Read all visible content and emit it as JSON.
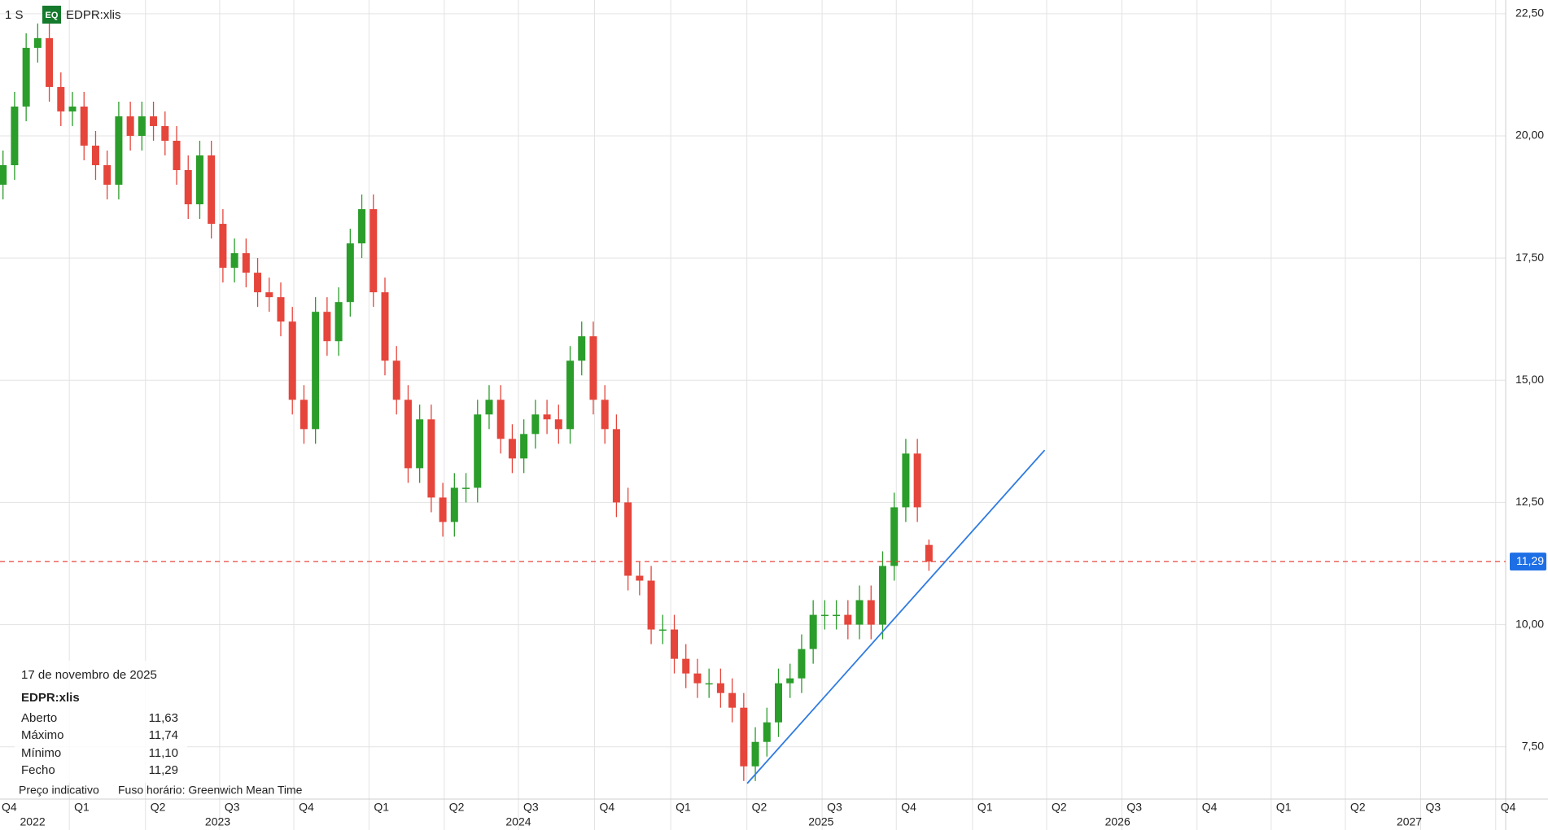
{
  "header": {
    "interval": "1 S",
    "badge": "EQ",
    "symbol": "EDPR:xlis"
  },
  "info": {
    "date": "17 de novembro de 2025",
    "symbol": "EDPR:xlis",
    "rows": [
      {
        "label": "Aberto",
        "value": "11,63"
      },
      {
        "label": "Máximo",
        "value": "11,74"
      },
      {
        "label": "Mínimo",
        "value": "11,10"
      },
      {
        "label": "Fecho",
        "value": "11,29"
      }
    ],
    "footer": [
      "Preço indicativo",
      "Fuso horário: Greenwich Mean Time"
    ]
  },
  "chart_data": {
    "type": "candlestick",
    "up_color": "#2a9d2a",
    "down_color": "#e5453b",
    "open": [
      19.0,
      19.4,
      20.6,
      21.8,
      22.0,
      21.0,
      20.5,
      20.6,
      19.8,
      19.4,
      19.0,
      20.4,
      20.0,
      20.4,
      20.2,
      19.9,
      19.3,
      18.6,
      19.6,
      18.2,
      17.3,
      17.6,
      17.2,
      16.8,
      16.7,
      16.2,
      14.6,
      14.0,
      16.4,
      15.8,
      16.6,
      17.8,
      18.5,
      16.8,
      15.4,
      14.6,
      13.2,
      14.2,
      12.6,
      12.1,
      12.8,
      12.8,
      14.3,
      14.6,
      13.8,
      13.4,
      13.9,
      14.3,
      14.2,
      14.0,
      15.4,
      15.9,
      14.6,
      14.0,
      12.5,
      11.0,
      10.9,
      9.9,
      9.9,
      9.3,
      9.0,
      8.8,
      8.8,
      8.6,
      8.3,
      7.1,
      7.6,
      8.0,
      8.8,
      8.9,
      9.5,
      10.2,
      10.2,
      10.2,
      10.0,
      10.5,
      10.0,
      11.2,
      12.4,
      13.5,
      11.63
    ],
    "high": [
      19.7,
      20.9,
      22.1,
      22.3,
      22.3,
      21.3,
      20.9,
      20.9,
      20.1,
      19.7,
      20.7,
      20.7,
      20.7,
      20.7,
      20.5,
      20.2,
      19.6,
      19.9,
      19.9,
      18.5,
      17.9,
      17.9,
      17.5,
      17.1,
      17.0,
      16.5,
      14.9,
      16.7,
      16.7,
      16.9,
      18.1,
      18.8,
      18.8,
      17.1,
      15.7,
      14.9,
      14.5,
      14.5,
      12.9,
      13.1,
      13.1,
      14.6,
      14.9,
      14.9,
      14.1,
      14.2,
      14.6,
      14.6,
      14.5,
      15.7,
      16.2,
      16.2,
      14.9,
      14.3,
      12.8,
      11.3,
      11.2,
      10.2,
      10.2,
      9.6,
      9.3,
      9.1,
      9.1,
      8.9,
      8.6,
      7.9,
      8.3,
      9.1,
      9.2,
      9.8,
      10.5,
      10.5,
      10.5,
      10.5,
      10.8,
      10.8,
      11.5,
      12.7,
      13.8,
      13.8,
      11.74
    ],
    "low": [
      18.7,
      19.1,
      20.3,
      21.5,
      20.7,
      20.2,
      20.2,
      19.5,
      19.1,
      18.7,
      18.7,
      19.7,
      19.7,
      19.9,
      19.6,
      19.0,
      18.3,
      18.3,
      17.9,
      17.0,
      17.0,
      16.9,
      16.5,
      16.4,
      15.9,
      14.3,
      13.7,
      13.7,
      15.5,
      15.5,
      16.3,
      17.5,
      16.5,
      15.1,
      14.3,
      12.9,
      12.9,
      12.3,
      11.8,
      11.8,
      12.5,
      12.5,
      14.0,
      13.5,
      13.1,
      13.1,
      13.6,
      13.9,
      13.7,
      13.7,
      15.1,
      14.3,
      13.7,
      12.2,
      10.7,
      10.6,
      9.6,
      9.6,
      9.0,
      8.7,
      8.5,
      8.5,
      8.3,
      8.0,
      6.8,
      6.8,
      7.3,
      7.7,
      8.5,
      8.6,
      9.2,
      9.9,
      9.9,
      9.7,
      9.7,
      9.7,
      9.7,
      10.9,
      12.1,
      12.1,
      11.1
    ],
    "close": [
      19.4,
      20.6,
      21.8,
      22.0,
      21.0,
      20.5,
      20.6,
      19.8,
      19.4,
      19.0,
      20.4,
      20.0,
      20.4,
      20.2,
      19.9,
      19.3,
      18.6,
      19.6,
      18.2,
      17.3,
      17.6,
      17.2,
      16.8,
      16.7,
      16.2,
      14.6,
      14.0,
      16.4,
      15.8,
      16.6,
      17.8,
      18.5,
      16.8,
      15.4,
      14.6,
      13.2,
      14.2,
      12.6,
      12.1,
      12.8,
      12.8,
      14.3,
      14.6,
      13.8,
      13.4,
      13.9,
      14.3,
      14.2,
      14.0,
      15.4,
      15.9,
      14.6,
      14.0,
      12.5,
      11.0,
      10.9,
      9.9,
      9.9,
      9.3,
      9.0,
      8.8,
      8.8,
      8.6,
      8.3,
      7.1,
      7.6,
      8.0,
      8.8,
      8.9,
      9.5,
      10.2,
      10.2,
      10.2,
      10.0,
      10.5,
      10.0,
      11.2,
      12.4,
      13.5,
      12.4,
      11.29
    ],
    "trendline": {
      "color": "#2f7be0",
      "x": [
        64.3,
        90.0
      ],
      "y": [
        6.75,
        13.57
      ]
    },
    "last_price": {
      "value": 11.29,
      "label": "11,29",
      "color": "#e5453b",
      "label_color": "#1e6fe6"
    },
    "xlim": [
      -0.26,
      129.83
    ],
    "ylim": [
      6.43,
      22.78
    ],
    "yticks": [
      {
        "value": 7.5,
        "label": "7,50"
      },
      {
        "value": 10,
        "label": "10,00"
      },
      {
        "value": 12.5,
        "label": "12,50"
      },
      {
        "value": 15,
        "label": "15,00"
      },
      {
        "value": 17.5,
        "label": "17,50"
      },
      {
        "value": 20,
        "label": "20,00"
      },
      {
        "value": 22.5,
        "label": "22,50"
      }
    ],
    "xticks": [
      {
        "value": -0.77,
        "label": "Q4"
      },
      {
        "value": 5.73,
        "label": "Q1"
      },
      {
        "value": 12.31,
        "label": "Q2"
      },
      {
        "value": 18.72,
        "label": "Q3"
      },
      {
        "value": 25.13,
        "label": "Q4"
      },
      {
        "value": 31.62,
        "label": "Q1"
      },
      {
        "value": 38.12,
        "label": "Q2"
      },
      {
        "value": 44.53,
        "label": "Q3"
      },
      {
        "value": 51.11,
        "label": "Q4"
      },
      {
        "value": 57.69,
        "label": "Q1"
      },
      {
        "value": 64.27,
        "label": "Q2"
      },
      {
        "value": 70.77,
        "label": "Q3"
      },
      {
        "value": 77.18,
        "label": "Q4"
      },
      {
        "value": 83.76,
        "label": "Q1"
      },
      {
        "value": 90.17,
        "label": "Q2"
      },
      {
        "value": 96.67,
        "label": "Q3"
      },
      {
        "value": 103.16,
        "label": "Q4"
      },
      {
        "value": 109.57,
        "label": "Q1"
      },
      {
        "value": 115.98,
        "label": "Q2"
      },
      {
        "value": 122.48,
        "label": "Q3"
      },
      {
        "value": 128.97,
        "label": "Q4"
      }
    ],
    "years": [
      {
        "value": 2.56,
        "label": "2022"
      },
      {
        "value": 18.55,
        "label": "2023"
      },
      {
        "value": 44.53,
        "label": "2024"
      },
      {
        "value": 70.68,
        "label": "2025"
      },
      {
        "value": 96.3,
        "label": "2026"
      },
      {
        "value": 121.5,
        "label": "2027"
      }
    ],
    "grid": true
  }
}
